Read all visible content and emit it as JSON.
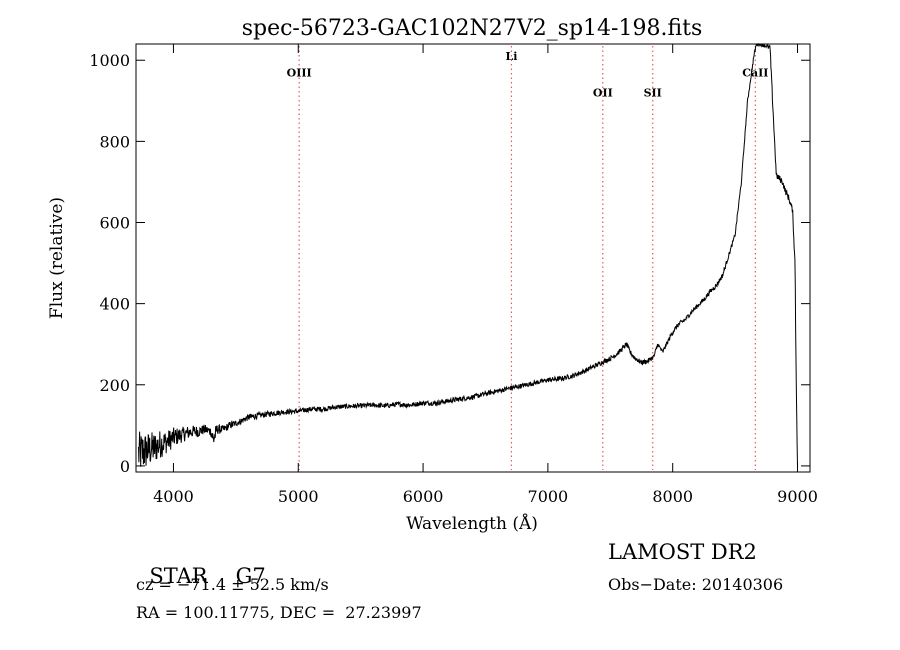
{
  "chart_data": {
    "type": "line",
    "title": "spec-56723-GAC102N27V2_sp14-198.fits",
    "xlabel": "Wavelength (Å)",
    "ylabel": "Flux (relative)",
    "xlim": [
      3700,
      9100
    ],
    "ylim": [
      -15,
      1040
    ],
    "xticks": [
      4000,
      5000,
      6000,
      7000,
      8000,
      9000
    ],
    "yticks": [
      0,
      200,
      400,
      600,
      800,
      1000
    ],
    "grid": false,
    "line_color": "#000000",
    "marker_color": "#e06060",
    "series": [
      {
        "x": [
          3720,
          3760,
          3800,
          3850,
          3900,
          3950,
          4000,
          4050,
          4100,
          4150,
          4200,
          4250,
          4300,
          4320,
          4350,
          4400,
          4450,
          4500,
          4550,
          4600,
          4700,
          4800,
          4900,
          5000,
          5100,
          5200,
          5300,
          5400,
          5500,
          5600,
          5700,
          5800,
          5900,
          6000,
          6100,
          6200,
          6300,
          6400,
          6500,
          6600,
          6700,
          6800,
          6900,
          7000,
          7100,
          7200,
          7300,
          7400,
          7500,
          7550,
          7600,
          7630,
          7660,
          7700,
          7750,
          7800,
          7850,
          7880,
          7900,
          7920,
          7950,
          8000,
          8050,
          8100,
          8150,
          8200,
          8250,
          8300,
          8350,
          8400,
          8450,
          8500,
          8550,
          8600,
          8650,
          8670,
          8700,
          8750,
          8780,
          8800,
          8830,
          8850,
          8880,
          8900,
          8930,
          8960,
          8980,
          8990,
          9000
        ],
        "y": [
          30,
          35,
          40,
          45,
          55,
          60,
          70,
          75,
          80,
          85,
          85,
          90,
          85,
          65,
          90,
          90,
          100,
          105,
          112,
          120,
          125,
          130,
          133,
          135,
          140,
          140,
          145,
          147,
          148,
          150,
          148,
          152,
          150,
          155,
          155,
          160,
          165,
          170,
          178,
          185,
          192,
          198,
          205,
          212,
          215,
          222,
          235,
          250,
          265,
          275,
          290,
          300,
          280,
          265,
          255,
          258,
          270,
          300,
          290,
          280,
          300,
          330,
          350,
          360,
          380,
          395,
          410,
          430,
          445,
          470,
          520,
          570,
          700,
          900,
          1010,
          1040,
          1040,
          1035,
          1030,
          900,
          715,
          710,
          700,
          680,
          660,
          630,
          500,
          200,
          0
        ],
        "noise": [
          55,
          50,
          45,
          40,
          35,
          28,
          25,
          20,
          18,
          15,
          14,
          12,
          12,
          30,
          12,
          10,
          9,
          8,
          8,
          8,
          7,
          7,
          6,
          6,
          6,
          6,
          6,
          6,
          6,
          6,
          6,
          6,
          6,
          6,
          6,
          6,
          6,
          6,
          6,
          6,
          6,
          6,
          6,
          6,
          6,
          6,
          6,
          6,
          6,
          6,
          6,
          6,
          6,
          6,
          6,
          6,
          6,
          6,
          6,
          6,
          6,
          6,
          6,
          6,
          6,
          6,
          6,
          6,
          6,
          6,
          5,
          5,
          5,
          5,
          5,
          5,
          5,
          5,
          8,
          8,
          8,
          8,
          8,
          8,
          8,
          8,
          8,
          8,
          8
        ]
      }
    ],
    "line_markers": [
      {
        "name": "OIII",
        "x": 5007,
        "label_y": 960
      },
      {
        "name": "Li",
        "x": 6708,
        "label_y": 1000
      },
      {
        "name": "OII",
        "x": 7440,
        "label_y": 910
      },
      {
        "name": "SII",
        "x": 7840,
        "label_y": 910
      },
      {
        "name": "CaII",
        "x": 8662,
        "label_y": 960
      }
    ]
  },
  "info": {
    "class": "STAR",
    "subclass": "G7",
    "survey": "LAMOST DR2",
    "cz": "cz = −71.4 ± 52.5 km/s",
    "obs_date": "Obs−Date: 20140306",
    "radec": "RA = 100.11775, DEC =  27.23997"
  }
}
